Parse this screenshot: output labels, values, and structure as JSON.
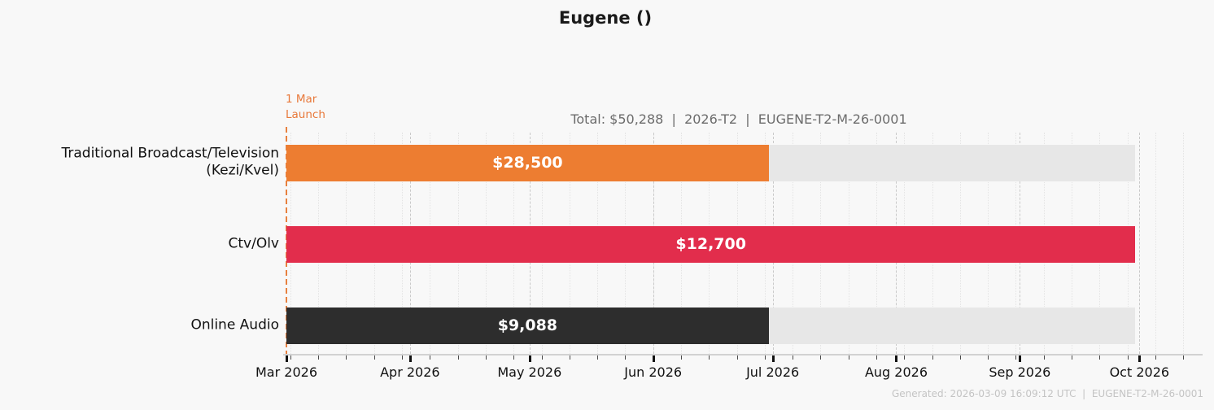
{
  "page": {
    "title": "Eugene ()",
    "summary": "Total: $50,288  |  2026-T2  |  EUGENE-T2-M-26-0001",
    "footer": "Generated: 2026-03-09 16:09:12 UTC  |  EUGENE-T2-M-26-0001"
  },
  "annotation": {
    "text": "1 Mar\nLaunch",
    "date": "2026-03-01"
  },
  "colors": {
    "background": "#F8F8F8",
    "bar_track": "#E7E7E7",
    "launch_line": "#E8803E",
    "month_gridline": "#C9C9C9",
    "week_gridline": "#E4E4E4",
    "axis_line": "#D2D2D2",
    "title_text": "#1A1A1A",
    "summary_text": "#6B6B6B",
    "footer_text": "#C4C4C4",
    "axis_text": "#111111",
    "bar_value_text": "#FFFFFF"
  },
  "chart_data": {
    "type": "bar",
    "orientation": "horizontal",
    "style": "gantt-flight",
    "title": "Eugene ()",
    "total": 50288,
    "total_label": "Total: $50,288",
    "period": "2026-T2",
    "plan_code": "EUGENE-T2-M-26-0001",
    "categories": [
      "Traditional Broadcast/Television\n(Kezi/Kvel)",
      "Ctv/Olv",
      "Online Audio"
    ],
    "series": [
      {
        "name": "Traditional Broadcast/Television (Kezi/Kvel)",
        "value": 28500,
        "value_label": "$28,500",
        "color": "#ED7D31",
        "flight_start": "2026-03-01",
        "flight_end": "2026-06-30",
        "start_day": 0,
        "end_day": 121
      },
      {
        "name": "Ctv/Olv",
        "value": 12700,
        "value_label": "$12,700",
        "color": "#E22D4C",
        "flight_start": "2026-03-01",
        "flight_end": "2026-09-30",
        "start_day": 0,
        "end_day": 213
      },
      {
        "name": "Online Audio",
        "value": 9088,
        "value_label": "$9,088",
        "color": "#2D2D2D",
        "flight_start": "2026-03-01",
        "flight_end": "2026-06-30",
        "start_day": 0,
        "end_day": 121
      }
    ],
    "track_start_day": 0,
    "track_end_day": 213,
    "launch_day": 0,
    "x_axis": {
      "start_date": "2026-03-01",
      "span_days": 227,
      "grid": true,
      "major_ticks": [
        {
          "label": "Mar 2026",
          "day": 0
        },
        {
          "label": "Apr 2026",
          "day": 31
        },
        {
          "label": "May 2026",
          "day": 61
        },
        {
          "label": "Jun 2026",
          "day": 92
        },
        {
          "label": "Jul 2026",
          "day": 122
        },
        {
          "label": "Aug 2026",
          "day": 153
        },
        {
          "label": "Sep 2026",
          "day": 184
        },
        {
          "label": "Oct 2026",
          "day": 214
        }
      ],
      "minor_tick_days": [
        1,
        8,
        15,
        22,
        29,
        36,
        43,
        50,
        57,
        64,
        71,
        78,
        85,
        92,
        99,
        106,
        113,
        120,
        127,
        134,
        141,
        148,
        155,
        162,
        169,
        176,
        183,
        190,
        197,
        204,
        211,
        218,
        225
      ]
    }
  }
}
